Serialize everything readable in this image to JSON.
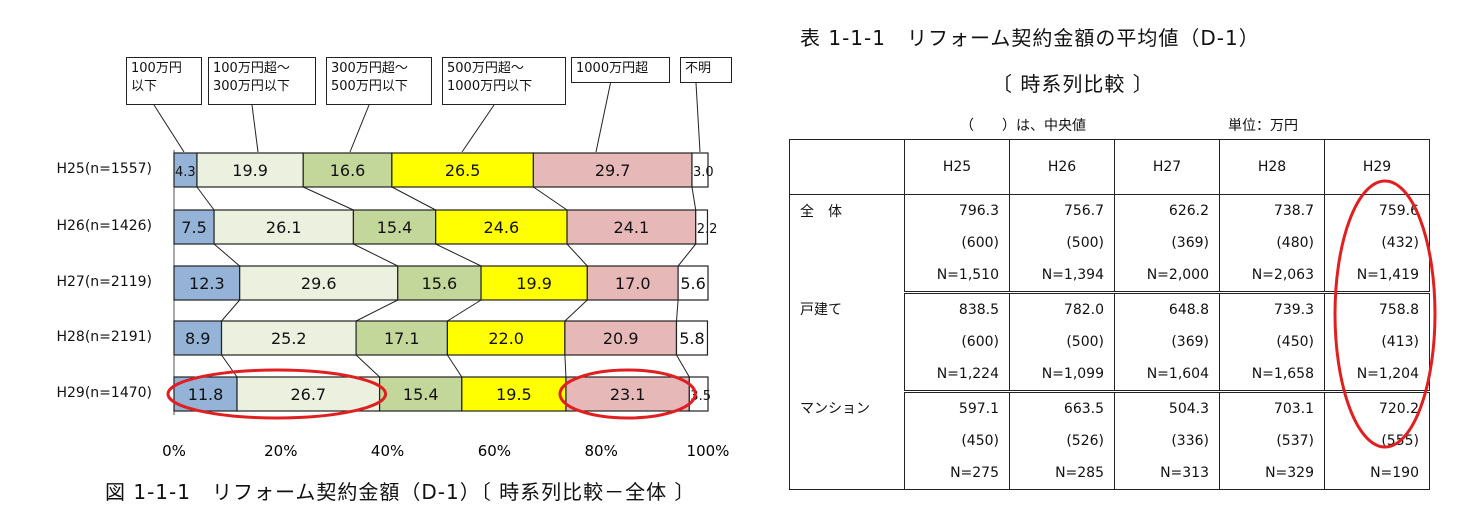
{
  "chart_data": {
    "type": "bar",
    "orientation": "horizontal",
    "stacked": true,
    "percent": true,
    "categories": [
      "H25(n=1557)",
      "H26(n=1426)",
      "H27(n=2119)",
      "H28(n=2191)",
      "H29(n=1470)"
    ],
    "series": [
      {
        "name": "100万円\n以下",
        "values": [
          4.3,
          7.5,
          12.3,
          8.9,
          11.8
        ],
        "color": "#95b3d7"
      },
      {
        "name": "100万円超～\n300万円以下",
        "values": [
          19.9,
          26.1,
          29.6,
          25.2,
          26.7
        ],
        "color": "#ebf1de"
      },
      {
        "name": "300万円超～\n500万円以下",
        "values": [
          16.6,
          15.4,
          15.6,
          17.1,
          15.4
        ],
        "color": "#c4d79b"
      },
      {
        "name": "500万円超～\n1000万円以下",
        "values": [
          26.5,
          24.6,
          19.9,
          22.0,
          19.5
        ],
        "color": "#ffff00"
      },
      {
        "name": "1000万円超",
        "values": [
          29.7,
          24.1,
          17.0,
          20.9,
          23.1
        ],
        "color": "#e6b8b7"
      },
      {
        "name": "不明",
        "values": [
          3.0,
          2.2,
          5.6,
          5.8,
          3.5
        ],
        "color": "#ffffff"
      }
    ],
    "x_ticks": [
      "0%",
      "20%",
      "40%",
      "60%",
      "80%",
      "100%"
    ],
    "xlim": [
      0,
      100
    ],
    "highlighted": [
      {
        "category": "H29(n=1470)",
        "series": [
          "100万円\n以下",
          "100万円超～\n300万円以下"
        ]
      },
      {
        "category": "H29(n=1470)",
        "series": [
          "1000万円超"
        ]
      }
    ],
    "highlight_color": "#e02020",
    "caption": "図 1-1-1　リフォーム契約金額（D-1）〔 時系列比較－全体 〕"
  },
  "table": {
    "title": "表 1-1-1　リフォーム契約金額の平均値（D-1）",
    "subtitle": "〔 時系列比較 〕",
    "note": "（　　）は、中央値",
    "unit": "単位：万円",
    "columns": [
      "H25",
      "H26",
      "H27",
      "H28",
      "H29"
    ],
    "rows": [
      {
        "label": "全　体",
        "mean": [
          "796.3",
          "756.7",
          "626.2",
          "738.7",
          "759.6"
        ],
        "median": [
          "(600)",
          "(500)",
          "(369)",
          "(480)",
          "(432)"
        ],
        "n": [
          "N=1,510",
          "N=1,394",
          "N=2,000",
          "N=2,063",
          "N=1,419"
        ]
      },
      {
        "label": "戸建て",
        "mean": [
          "838.5",
          "782.0",
          "648.8",
          "739.3",
          "758.8"
        ],
        "median": [
          "(600)",
          "(500)",
          "(369)",
          "(450)",
          "(413)"
        ],
        "n": [
          "N=1,224",
          "N=1,099",
          "N=1,604",
          "N=1,658",
          "N=1,204"
        ]
      },
      {
        "label": "マンション",
        "mean": [
          "597.1",
          "663.5",
          "504.3",
          "703.1",
          "720.2"
        ],
        "median": [
          "(450)",
          "(526)",
          "(336)",
          "(537)",
          "(555)"
        ],
        "n": [
          "N=275",
          "N=285",
          "N=313",
          "N=329",
          "N=190"
        ]
      }
    ],
    "highlight_column": "H29",
    "highlight_color": "#e02020"
  }
}
